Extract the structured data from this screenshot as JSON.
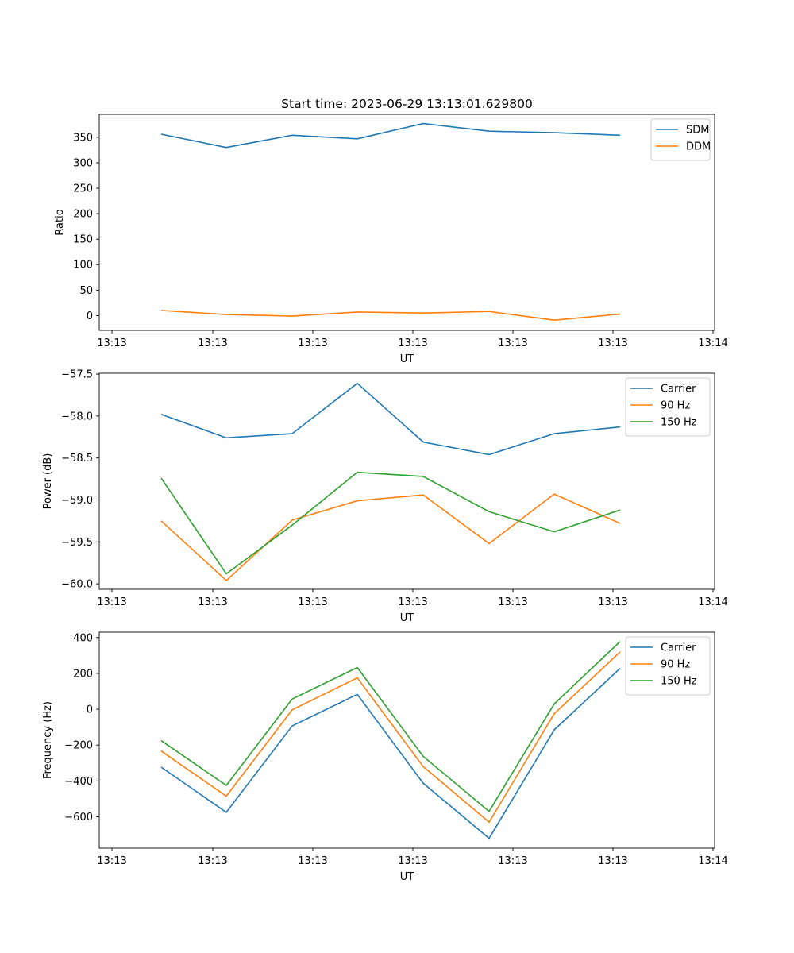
{
  "chart_data": [
    {
      "type": "line",
      "title": "Start time: 2023-06-29 13:13:01.629800",
      "xlabel": "UT",
      "ylabel": "Ratio",
      "x_tick_labels": [
        "13:13",
        "13:13",
        "13:13",
        "13:13",
        "13:13",
        "13:13",
        "13:14"
      ],
      "y_ticks": [
        0,
        50,
        100,
        150,
        200,
        250,
        300,
        350
      ],
      "ylim": [
        -29,
        395
      ],
      "legend_position": "upper right",
      "series": [
        {
          "name": "SDM",
          "color": "#1f77b4",
          "values": [
            356,
            330,
            354,
            347,
            377,
            362,
            359,
            354
          ]
        },
        {
          "name": "DDM",
          "color": "#ff7f0e",
          "values": [
            10,
            2,
            -1,
            7,
            5,
            8,
            -9,
            3
          ]
        }
      ]
    },
    {
      "type": "line",
      "title": "",
      "xlabel": "UT",
      "ylabel": "Power (dB)",
      "x_tick_labels": [
        "13:13",
        "13:13",
        "13:13",
        "13:13",
        "13:13",
        "13:13",
        "13:14"
      ],
      "y_ticks": [
        -60.0,
        -59.5,
        -59.0,
        -58.5,
        -58.0,
        -57.5
      ],
      "y_tick_labels": [
        "−60.0",
        "−59.5",
        "−59.0",
        "−58.5",
        "−58.0",
        "−57.5"
      ],
      "ylim": [
        -60.065,
        -57.49
      ],
      "legend_position": "upper right",
      "series": [
        {
          "name": "Carrier",
          "color": "#1f77b4",
          "values": [
            -57.98,
            -58.26,
            -58.21,
            -57.61,
            -58.31,
            -58.46,
            -58.21,
            -58.13
          ]
        },
        {
          "name": "90 Hz",
          "color": "#ff7f0e",
          "values": [
            -59.25,
            -59.96,
            -59.24,
            -59.01,
            -58.94,
            -59.52,
            -58.93,
            -59.28
          ]
        },
        {
          "name": "150 Hz",
          "color": "#2ca02c",
          "values": [
            -58.74,
            -59.88,
            -59.3,
            -58.67,
            -58.72,
            -59.14,
            -59.38,
            -59.12
          ]
        }
      ]
    },
    {
      "type": "line",
      "title": "",
      "xlabel": "UT",
      "ylabel": "Frequency (Hz)",
      "x_tick_labels": [
        "13:13",
        "13:13",
        "13:13",
        "13:13",
        "13:13",
        "13:13",
        "13:14"
      ],
      "y_ticks": [
        -600,
        -400,
        -200,
        0,
        200,
        400
      ],
      "y_tick_labels": [
        "−600",
        "−400",
        "−200",
        "0",
        "200",
        "400"
      ],
      "ylim": [
        -775,
        430
      ],
      "legend_position": "upper right",
      "series": [
        {
          "name": "Carrier",
          "color": "#1f77b4",
          "values": [
            -323,
            -575,
            -93,
            83,
            -413,
            -720,
            -115,
            228
          ]
        },
        {
          "name": "90 Hz",
          "color": "#ff7f0e",
          "values": [
            -233,
            -485,
            -3,
            175,
            -320,
            -630,
            -25,
            320
          ]
        },
        {
          "name": "150 Hz",
          "color": "#2ca02c",
          "values": [
            -175,
            -425,
            57,
            233,
            -263,
            -570,
            30,
            378
          ]
        }
      ]
    }
  ]
}
